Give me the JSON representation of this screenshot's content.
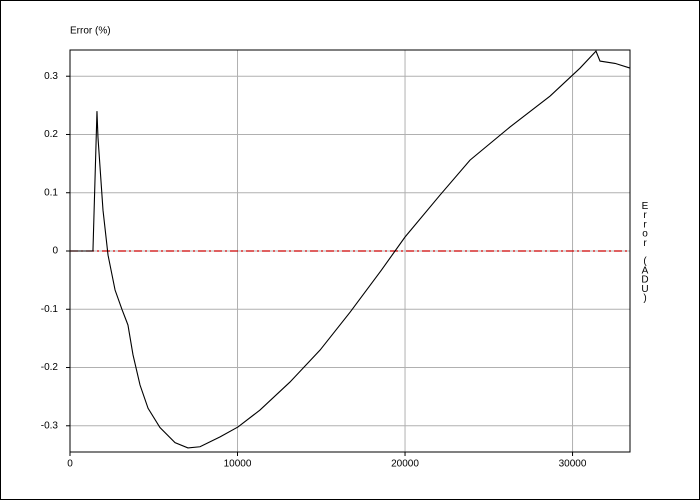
{
  "chart_data": {
    "type": "line",
    "y_label": "Error (%)",
    "y2_label": "Error (ADU)",
    "x": [
      0,
      1370,
      1610,
      1670,
      1970,
      2270,
      2690,
      3100,
      3460,
      3760,
      4180,
      4660,
      5370,
      6270,
      7040,
      7760,
      8960,
      10030,
      11340,
      13130,
      14930,
      16720,
      18510,
      20000,
      22090,
      23880,
      26270,
      28660,
      30450,
      31400,
      31640,
      32540,
      33430
    ],
    "series": [
      {
        "color": "#000000",
        "values": [
          0,
          0,
          0.24,
          0.195,
          0.07,
          -0.007,
          -0.067,
          -0.1,
          -0.127,
          -0.178,
          -0.23,
          -0.27,
          -0.303,
          -0.329,
          -0.338,
          -0.336,
          -0.319,
          -0.302,
          -0.273,
          -0.225,
          -0.17,
          -0.105,
          -0.036,
          0.024,
          0.096,
          0.156,
          0.213,
          0.266,
          0.314,
          0.343,
          0.326,
          0.322,
          0.314
        ]
      }
    ],
    "reference_line": {
      "y": 0,
      "color": "#cc0000",
      "style": "dash-dot"
    },
    "xlim": [
      0,
      33430
    ],
    "xticks": [
      0,
      10000,
      20000,
      30000
    ],
    "ylim": [
      -0.345,
      0.345
    ],
    "yticks": [
      -0.3,
      -0.2,
      -0.1,
      0,
      0.1,
      0.2,
      0.3
    ],
    "grid": true,
    "grid_color": "#b0b0b0"
  }
}
